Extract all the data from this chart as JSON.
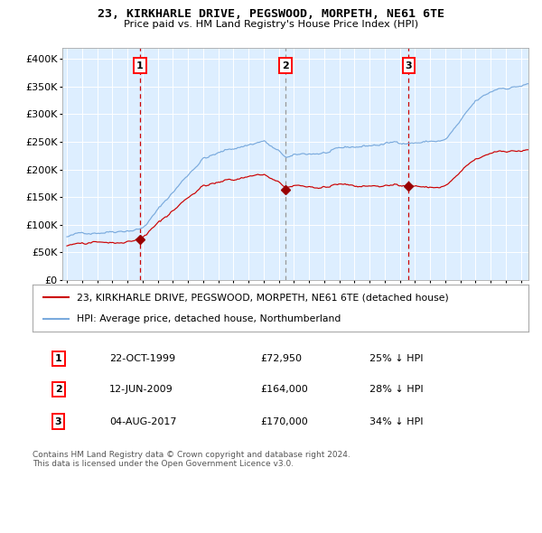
{
  "title": "23, KIRKHARLE DRIVE, PEGSWOOD, MORPETH, NE61 6TE",
  "subtitle": "Price paid vs. HM Land Registry's House Price Index (HPI)",
  "red_line_color": "#cc0000",
  "blue_line_color": "#7aaadd",
  "marker_color": "#990000",
  "plot_bg_color": "#ddeeff",
  "fig_bg_color": "#ffffff",
  "sale1_date": 1999.81,
  "sale1_price": 72950,
  "sale2_date": 2009.45,
  "sale2_price": 164000,
  "sale3_date": 2017.59,
  "sale3_price": 170000,
  "table_row1": [
    "1",
    "22-OCT-1999",
    "£72,950",
    "25% ↓ HPI"
  ],
  "table_row2": [
    "2",
    "12-JUN-2009",
    "£164,000",
    "28% ↓ HPI"
  ],
  "table_row3": [
    "3",
    "04-AUG-2017",
    "£170,000",
    "34% ↓ HPI"
  ],
  "legend_line1": "23, KIRKHARLE DRIVE, PEGSWOOD, MORPETH, NE61 6TE (detached house)",
  "legend_line2": "HPI: Average price, detached house, Northumberland",
  "footer": "Contains HM Land Registry data © Crown copyright and database right 2024.\nThis data is licensed under the Open Government Licence v3.0.",
  "ylim": [
    0,
    420000
  ],
  "yticks": [
    0,
    50000,
    100000,
    150000,
    200000,
    250000,
    300000,
    350000,
    400000
  ],
  "ytick_labels": [
    "£0",
    "£50K",
    "£100K",
    "£150K",
    "£200K",
    "£250K",
    "£300K",
    "£350K",
    "£400K"
  ],
  "xlim_start": 1994.7,
  "xlim_end": 2025.5
}
